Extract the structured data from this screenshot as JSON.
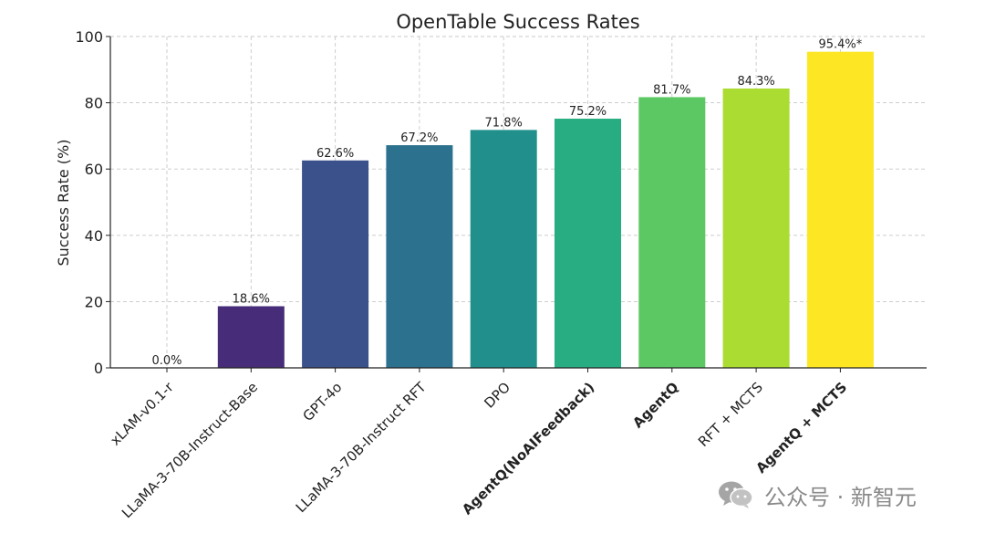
{
  "chart_data": {
    "type": "bar",
    "title": "OpenTable Success Rates",
    "xlabel": "",
    "ylabel": "Success Rate (%)",
    "ylim": [
      0,
      100
    ],
    "yticks": [
      0,
      20,
      40,
      60,
      80,
      100
    ],
    "grid": true,
    "categories": [
      "xLAM-v0.1-r",
      "LLaMA-3-70B-Instruct-Base",
      "GPT-4o",
      "LLaMA-3-70B-Instruct RFT",
      "DPO",
      "AgentQ(NoAIFeedback)",
      "AgentQ",
      "RFT + MCTS",
      "AgentQ + MCTS"
    ],
    "values": [
      0.0,
      18.6,
      62.6,
      67.2,
      71.8,
      75.2,
      81.7,
      84.3,
      95.4
    ],
    "value_labels": [
      "0.0%",
      "18.6%",
      "62.6%",
      "67.2%",
      "71.8%",
      "75.2%",
      "81.7%",
      "84.3%",
      "95.4%*"
    ],
    "bold_categories": [
      false,
      false,
      false,
      false,
      false,
      true,
      true,
      false,
      true
    ],
    "colors": [
      "#440154",
      "#472c7a",
      "#3b518b",
      "#2c718e",
      "#21908d",
      "#27ad81",
      "#5cc863",
      "#aadc32",
      "#fde725"
    ]
  },
  "watermark": {
    "icon": "wechat-icon",
    "text": "公众号 · 新智元"
  }
}
